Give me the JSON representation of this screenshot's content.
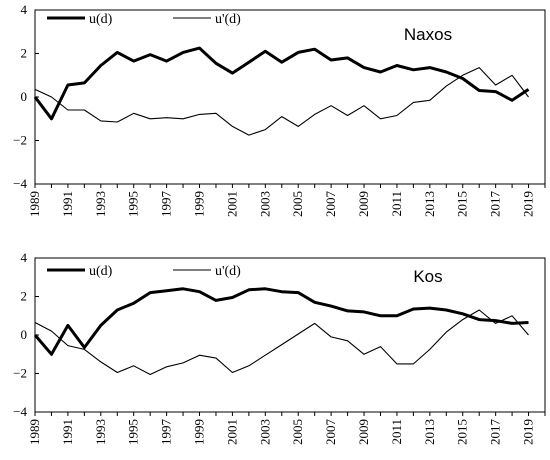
{
  "chart_data": [
    {
      "type": "line",
      "title": "Naxos",
      "xlabel": "",
      "ylabel": "",
      "x": [
        1989,
        1990,
        1991,
        1992,
        1993,
        1994,
        1995,
        1996,
        1997,
        1998,
        1999,
        2000,
        2001,
        2002,
        2003,
        2004,
        2005,
        2006,
        2007,
        2008,
        2009,
        2010,
        2011,
        2012,
        2013,
        2014,
        2015,
        2016,
        2017,
        2018,
        2019
      ],
      "x_tick_labels": [
        "1989",
        "1991",
        "1993",
        "1995",
        "1997",
        "1999",
        "2001",
        "2003",
        "2005",
        "2007",
        "2009",
        "2011",
        "2013",
        "2015",
        "2017",
        "2019"
      ],
      "y_tick_labels": [
        "4",
        "2",
        "0",
        "−2",
        "−4"
      ],
      "ylim": [
        -4,
        4
      ],
      "xlim": [
        1989,
        2020
      ],
      "grid": false,
      "legend_position": "top-left",
      "series": [
        {
          "name": "u(d)",
          "weight": "bold",
          "color": "#000000",
          "values": [
            0,
            -1,
            0.55,
            0.65,
            1.45,
            2.05,
            1.65,
            1.95,
            1.65,
            2.05,
            2.25,
            1.55,
            1.1,
            1.6,
            2.1,
            1.6,
            2.05,
            2.2,
            1.7,
            1.8,
            1.35,
            1.15,
            1.45,
            1.25,
            1.35,
            1.15,
            0.85,
            0.3,
            0.25,
            -0.15,
            0.35
          ]
        },
        {
          "name": "u'(d)",
          "weight": "thin",
          "color": "#000000",
          "values": [
            0.35,
            0,
            -0.6,
            -0.6,
            -1.1,
            -1.15,
            -0.75,
            -1,
            -0.95,
            -1,
            -0.8,
            -0.75,
            -1.35,
            -1.75,
            -1.5,
            -0.9,
            -1.35,
            -0.8,
            -0.4,
            -0.85,
            -0.4,
            -1,
            -0.85,
            -0.25,
            -0.15,
            0.5,
            1,
            1.35,
            0.55,
            1,
            0
          ]
        }
      ]
    },
    {
      "type": "line",
      "title": "Kos",
      "xlabel": "",
      "ylabel": "",
      "x": [
        1989,
        1990,
        1991,
        1992,
        1993,
        1994,
        1995,
        1996,
        1997,
        1998,
        1999,
        2000,
        2001,
        2002,
        2003,
        2004,
        2005,
        2006,
        2007,
        2008,
        2009,
        2010,
        2011,
        2012,
        2013,
        2014,
        2015,
        2016,
        2017,
        2018,
        2019
      ],
      "x_tick_labels": [
        "1989",
        "1991",
        "1993",
        "1995",
        "1997",
        "1999",
        "2001",
        "2003",
        "2005",
        "2007",
        "2009",
        "2011",
        "2013",
        "2015",
        "2017",
        "2019"
      ],
      "y_tick_labels": [
        "4",
        "2",
        "0",
        "−2",
        "−4"
      ],
      "ylim": [
        -4,
        4
      ],
      "xlim": [
        1989,
        2020
      ],
      "grid": false,
      "legend_position": "top-left",
      "series": [
        {
          "name": "u(d)",
          "weight": "bold",
          "color": "#000000",
          "values": [
            0,
            -1,
            0.5,
            -0.65,
            0.5,
            1.3,
            1.65,
            2.2,
            2.3,
            2.4,
            2.25,
            1.8,
            1.95,
            2.35,
            2.4,
            2.25,
            2.2,
            1.7,
            1.5,
            1.25,
            1.2,
            1,
            1,
            1.35,
            1.4,
            1.3,
            1.1,
            0.8,
            0.75,
            0.6,
            0.65
          ]
        },
        {
          "name": "u'(d)",
          "weight": "thin",
          "color": "#000000",
          "values": [
            0.65,
            0.2,
            -0.55,
            -0.75,
            -1.4,
            -1.95,
            -1.6,
            -2.05,
            -1.65,
            -1.45,
            -1.05,
            -1.2,
            -1.95,
            -1.6,
            -1.05,
            -0.5,
            0.05,
            0.6,
            -0.1,
            -0.3,
            -1,
            -0.6,
            -1.5,
            -1.5,
            -0.75,
            0.15,
            0.8,
            1.3,
            0.6,
            1,
            0
          ]
        }
      ]
    }
  ]
}
